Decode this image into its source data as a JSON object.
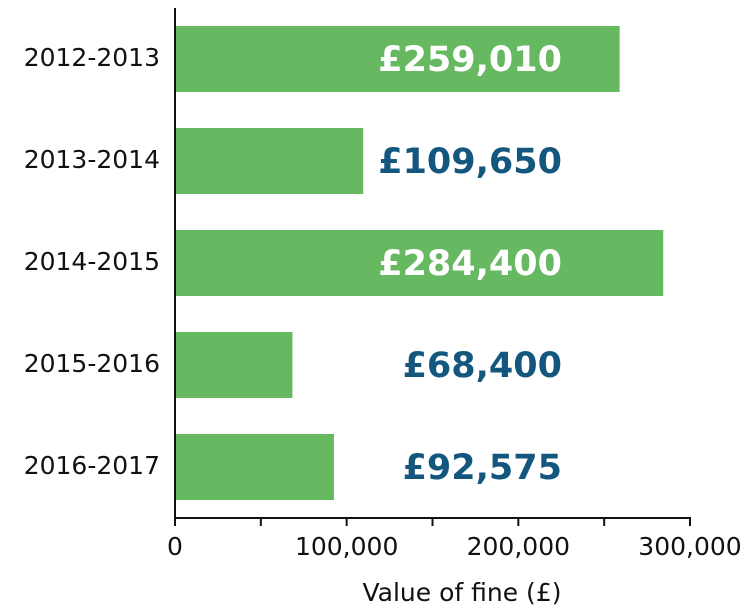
{
  "chart_data": {
    "type": "barh",
    "categories": [
      "2012-2013",
      "2013-2014",
      "2014-2015",
      "2015-2016",
      "2016-2017"
    ],
    "values": [
      259010,
      109650,
      284400,
      68400,
      92575
    ],
    "value_labels": [
      "£259,010",
      "£109,650",
      "£284,400",
      "£68,400",
      "£92,575"
    ],
    "value_label_colors": [
      "#ffffff",
      "#14577e",
      "#ffffff",
      "#14577e",
      "#14577e"
    ],
    "color": "#66b861",
    "x_label": "Value of fine (£)",
    "xlim": [
      0,
      300000
    ],
    "xticks": [
      0,
      {
        "value": 100000,
        "label": "100,000"
      },
      {
        "value": 200000,
        "label": "200,000"
      },
      {
        "value": 300000,
        "label": "300,000"
      }
    ],
    "xminor_ticks": [
      50000,
      150000,
      250000
    ]
  }
}
